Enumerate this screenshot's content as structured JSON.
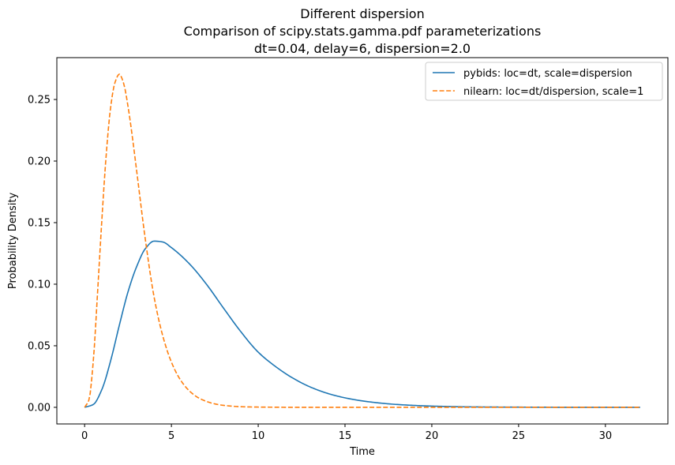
{
  "chart_data": {
    "type": "line",
    "title": "Different dispersion",
    "subtitle_lines": [
      "Comparison of scipy.stats.gamma.pdf parameterizations",
      "dt=0.04, delay=6, dispersion=2.0"
    ],
    "xlabel": "Time",
    "ylabel": "Probability Density",
    "xlim": [
      -1.6,
      33.6
    ],
    "ylim": [
      -0.0135,
      0.284
    ],
    "xticks": [
      0,
      5,
      10,
      15,
      20,
      25,
      30
    ],
    "xtick_labels": [
      "0",
      "5",
      "10",
      "15",
      "20",
      "25",
      "30"
    ],
    "yticks": [
      0.0,
      0.05,
      0.1,
      0.15,
      0.2,
      0.25
    ],
    "ytick_labels": [
      "0.00",
      "0.05",
      "0.10",
      "0.15",
      "0.20",
      "0.25"
    ],
    "grid": false,
    "legend_position": "top-right",
    "series": [
      {
        "name": "pybids: loc=dt, scale=dispersion",
        "color": "#1f77b4",
        "linestyle": "solid",
        "x": [
          0,
          0.5,
          1,
          1.5,
          2,
          2.5,
          3,
          3.5,
          4,
          4.5,
          5,
          6,
          7,
          8,
          9,
          10,
          11,
          12,
          13,
          14,
          15,
          16,
          17,
          18,
          20,
          22,
          24,
          26,
          28,
          30,
          32
        ],
        "y": [
          0,
          0.0023,
          0.0147,
          0.0379,
          0.0667,
          0.0938,
          0.1144,
          0.1289,
          0.135,
          0.1343,
          0.1297,
          0.1171,
          0.1003,
          0.0806,
          0.0614,
          0.0448,
          0.0331,
          0.0237,
          0.0165,
          0.0113,
          0.0077,
          0.0052,
          0.0035,
          0.0023,
          0.001,
          0.0004,
          0.0002,
          0.0001,
          0.0,
          0.0,
          0.0
        ]
      },
      {
        "name": "nilearn: loc=dt/dispersion, scale=1",
        "color": "#ff7f0e",
        "linestyle": "dashed",
        "x": [
          0,
          0.25,
          0.5,
          0.75,
          1,
          1.25,
          1.5,
          1.75,
          2,
          2.25,
          2.5,
          2.75,
          3,
          3.5,
          4,
          4.5,
          5,
          5.5,
          6,
          6.5,
          7,
          7.5,
          8,
          9,
          10,
          11,
          12,
          14,
          16,
          20,
          24,
          28,
          32
        ],
        "y": [
          0,
          0.006,
          0.0376,
          0.0941,
          0.1538,
          0.2063,
          0.2439,
          0.2639,
          0.2706,
          0.263,
          0.2444,
          0.2196,
          0.1918,
          0.1361,
          0.0897,
          0.0581,
          0.0367,
          0.0227,
          0.0138,
          0.0082,
          0.0049,
          0.0028,
          0.0016,
          0.0005,
          0.0002,
          0.0001,
          0.0,
          0.0,
          0.0,
          0.0,
          0.0,
          0.0,
          0.0
        ]
      }
    ]
  }
}
